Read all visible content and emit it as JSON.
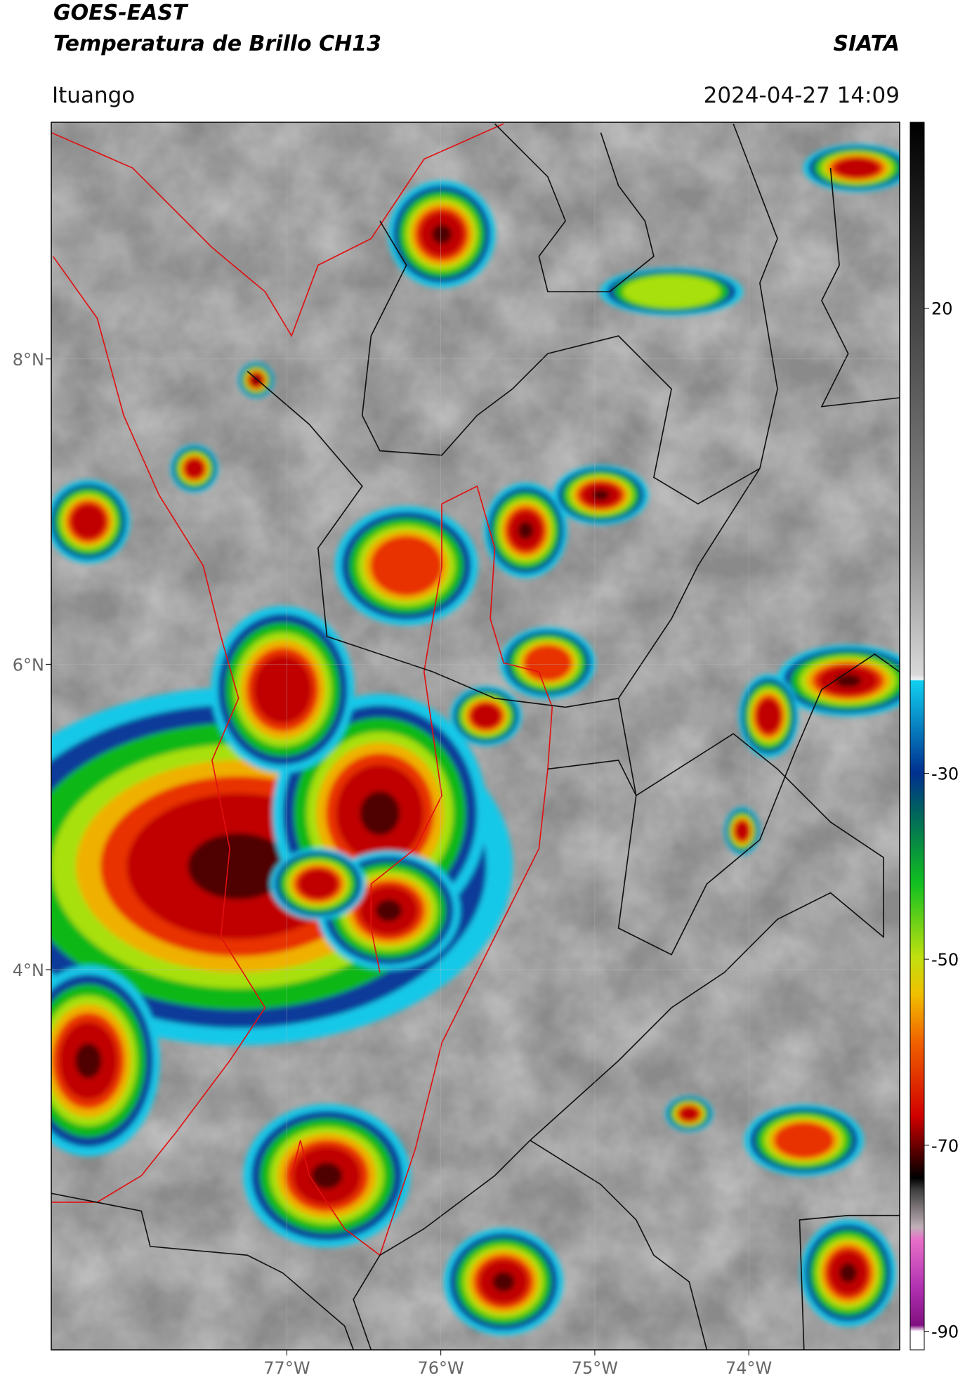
{
  "header": {
    "title": "GOES-EAST",
    "subtitle": "Temperatura de Brillo CH13",
    "source": "SIATA",
    "location": "Ituango",
    "datetime": "2024-04-27 14:09"
  },
  "map": {
    "lon_range": [
      -78.53,
      -73.02
    ],
    "lat_range": [
      1.51,
      9.55
    ],
    "lon_ticks": [
      {
        "value": -77,
        "label": "77°W"
      },
      {
        "value": -76,
        "label": "76°W"
      },
      {
        "value": -75,
        "label": "75°W"
      },
      {
        "value": -74,
        "label": "74°W"
      }
    ],
    "lat_ticks": [
      {
        "value": 8,
        "label": "8°N"
      },
      {
        "value": 6,
        "label": "6°N"
      },
      {
        "value": 4,
        "label": "4°N"
      }
    ]
  },
  "colorbar": {
    "range": [
      40,
      -92
    ],
    "ticks": [
      20,
      -30,
      -50,
      -70,
      -90
    ]
  }
}
